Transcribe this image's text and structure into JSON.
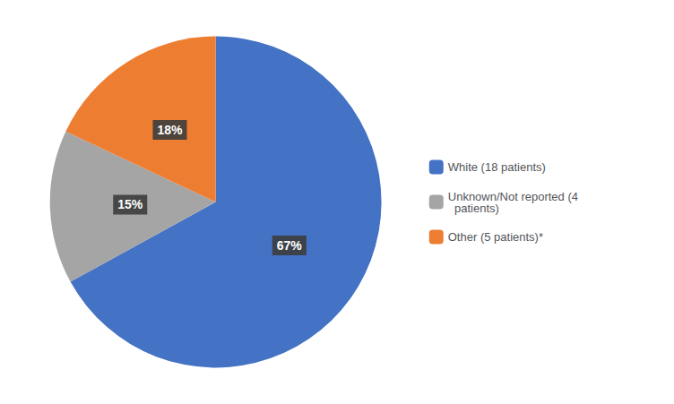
{
  "chart_data": {
    "type": "pie",
    "categories": [
      "White (18 patients)",
      "Unknown/Not reported (4\n  patients)",
      "Other (5 patients)*"
    ],
    "values": [
      67,
      15,
      18
    ],
    "value_labels": [
      "67%",
      "15%",
      "18%"
    ],
    "colors": [
      "#4472C4",
      "#A5A5A5",
      "#ED7D31"
    ],
    "data_labels": true,
    "legend": "right"
  }
}
